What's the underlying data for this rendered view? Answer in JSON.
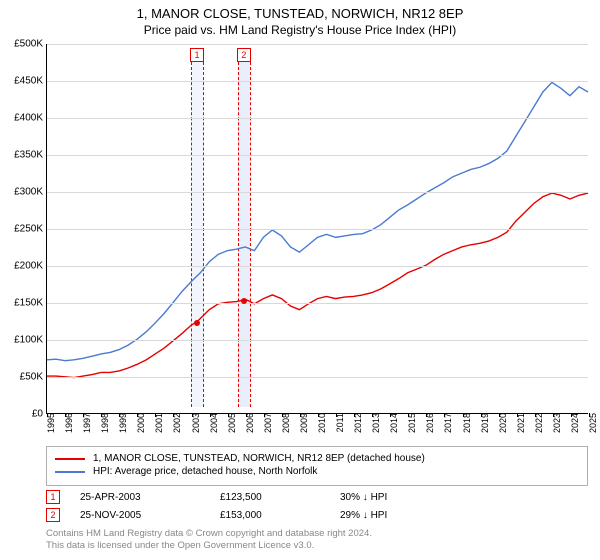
{
  "title": "1, MANOR CLOSE, TUNSTEAD, NORWICH, NR12 8EP",
  "subtitle": "Price paid vs. HM Land Registry's House Price Index (HPI)",
  "chart": {
    "type": "line",
    "background_color": "#ffffff",
    "grid_color": "#d9d9d9",
    "axis_color": "#000000",
    "text_color": "#000000",
    "title_fontsize": 13,
    "subtitle_fontsize": 12,
    "ylabel_fontsize": 10,
    "xlabel_fontsize": 9,
    "ylim": [
      0,
      500000
    ],
    "ytick_step": 50000,
    "yticks": [
      "£0",
      "£50K",
      "£100K",
      "£150K",
      "£200K",
      "£250K",
      "£300K",
      "£350K",
      "£400K",
      "£450K",
      "£500K"
    ],
    "xlim": [
      1995,
      2025
    ],
    "xticks": [
      1995,
      1996,
      1997,
      1998,
      1999,
      2000,
      2001,
      2002,
      2003,
      2004,
      2005,
      2006,
      2007,
      2008,
      2009,
      2010,
      2011,
      2012,
      2013,
      2014,
      2015,
      2016,
      2017,
      2018,
      2019,
      2020,
      2021,
      2022,
      2023,
      2024,
      2025
    ],
    "line_width": 1.4,
    "series": [
      {
        "name": "property_price",
        "label": "1, MANOR CLOSE, TUNSTEAD, NORWICH, NR12 8EP (detached house)",
        "color": "#e60000",
        "points": [
          {
            "x": 1995.0,
            "y": 50000
          },
          {
            "x": 1995.5,
            "y": 50000
          },
          {
            "x": 1996.0,
            "y": 49000
          },
          {
            "x": 1996.5,
            "y": 48000
          },
          {
            "x": 1997.0,
            "y": 50000
          },
          {
            "x": 1997.5,
            "y": 52000
          },
          {
            "x": 1998.0,
            "y": 55000
          },
          {
            "x": 1998.5,
            "y": 55000
          },
          {
            "x": 1999.0,
            "y": 57000
          },
          {
            "x": 1999.5,
            "y": 61000
          },
          {
            "x": 2000.0,
            "y": 66000
          },
          {
            "x": 2000.5,
            "y": 72000
          },
          {
            "x": 2001.0,
            "y": 80000
          },
          {
            "x": 2001.5,
            "y": 88000
          },
          {
            "x": 2002.0,
            "y": 98000
          },
          {
            "x": 2002.5,
            "y": 108000
          },
          {
            "x": 2003.0,
            "y": 119000
          },
          {
            "x": 2003.3,
            "y": 123500
          },
          {
            "x": 2003.5,
            "y": 128000
          },
          {
            "x": 2004.0,
            "y": 140000
          },
          {
            "x": 2004.5,
            "y": 148000
          },
          {
            "x": 2005.0,
            "y": 150000
          },
          {
            "x": 2005.5,
            "y": 151000
          },
          {
            "x": 2005.9,
            "y": 153000
          },
          {
            "x": 2006.0,
            "y": 154000
          },
          {
            "x": 2006.5,
            "y": 148000
          },
          {
            "x": 2007.0,
            "y": 155000
          },
          {
            "x": 2007.5,
            "y": 160000
          },
          {
            "x": 2008.0,
            "y": 155000
          },
          {
            "x": 2008.5,
            "y": 145000
          },
          {
            "x": 2009.0,
            "y": 140000
          },
          {
            "x": 2009.5,
            "y": 148000
          },
          {
            "x": 2010.0,
            "y": 155000
          },
          {
            "x": 2010.5,
            "y": 158000
          },
          {
            "x": 2011.0,
            "y": 155000
          },
          {
            "x": 2011.5,
            "y": 157000
          },
          {
            "x": 2012.0,
            "y": 158000
          },
          {
            "x": 2012.5,
            "y": 160000
          },
          {
            "x": 2013.0,
            "y": 163000
          },
          {
            "x": 2013.5,
            "y": 168000
          },
          {
            "x": 2014.0,
            "y": 175000
          },
          {
            "x": 2014.5,
            "y": 182000
          },
          {
            "x": 2015.0,
            "y": 190000
          },
          {
            "x": 2015.5,
            "y": 195000
          },
          {
            "x": 2016.0,
            "y": 200000
          },
          {
            "x": 2016.5,
            "y": 208000
          },
          {
            "x": 2017.0,
            "y": 215000
          },
          {
            "x": 2017.5,
            "y": 220000
          },
          {
            "x": 2018.0,
            "y": 225000
          },
          {
            "x": 2018.5,
            "y": 228000
          },
          {
            "x": 2019.0,
            "y": 230000
          },
          {
            "x": 2019.5,
            "y": 233000
          },
          {
            "x": 2020.0,
            "y": 238000
          },
          {
            "x": 2020.5,
            "y": 245000
          },
          {
            "x": 2021.0,
            "y": 260000
          },
          {
            "x": 2021.5,
            "y": 272000
          },
          {
            "x": 2022.0,
            "y": 284000
          },
          {
            "x": 2022.5,
            "y": 293000
          },
          {
            "x": 2023.0,
            "y": 298000
          },
          {
            "x": 2023.5,
            "y": 295000
          },
          {
            "x": 2024.0,
            "y": 290000
          },
          {
            "x": 2024.5,
            "y": 295000
          },
          {
            "x": 2025.0,
            "y": 298000
          }
        ]
      },
      {
        "name": "hpi",
        "label": "HPI: Average price, detached house, North Norfolk",
        "color": "#4a7bd0",
        "points": [
          {
            "x": 1995.0,
            "y": 72000
          },
          {
            "x": 1995.5,
            "y": 73000
          },
          {
            "x": 1996.0,
            "y": 71000
          },
          {
            "x": 1996.5,
            "y": 72000
          },
          {
            "x": 1997.0,
            "y": 74000
          },
          {
            "x": 1997.5,
            "y": 77000
          },
          {
            "x": 1998.0,
            "y": 80000
          },
          {
            "x": 1998.5,
            "y": 82000
          },
          {
            "x": 1999.0,
            "y": 86000
          },
          {
            "x": 1999.5,
            "y": 92000
          },
          {
            "x": 2000.0,
            "y": 100000
          },
          {
            "x": 2000.5,
            "y": 110000
          },
          {
            "x": 2001.0,
            "y": 122000
          },
          {
            "x": 2001.5,
            "y": 135000
          },
          {
            "x": 2002.0,
            "y": 150000
          },
          {
            "x": 2002.5,
            "y": 165000
          },
          {
            "x": 2003.0,
            "y": 178000
          },
          {
            "x": 2003.5,
            "y": 190000
          },
          {
            "x": 2004.0,
            "y": 205000
          },
          {
            "x": 2004.5,
            "y": 215000
          },
          {
            "x": 2005.0,
            "y": 220000
          },
          {
            "x": 2005.5,
            "y": 222000
          },
          {
            "x": 2006.0,
            "y": 225000
          },
          {
            "x": 2006.5,
            "y": 220000
          },
          {
            "x": 2007.0,
            "y": 238000
          },
          {
            "x": 2007.5,
            "y": 248000
          },
          {
            "x": 2008.0,
            "y": 240000
          },
          {
            "x": 2008.5,
            "y": 225000
          },
          {
            "x": 2009.0,
            "y": 218000
          },
          {
            "x": 2009.5,
            "y": 228000
          },
          {
            "x": 2010.0,
            "y": 238000
          },
          {
            "x": 2010.5,
            "y": 242000
          },
          {
            "x": 2011.0,
            "y": 238000
          },
          {
            "x": 2011.5,
            "y": 240000
          },
          {
            "x": 2012.0,
            "y": 242000
          },
          {
            "x": 2012.5,
            "y": 243000
          },
          {
            "x": 2013.0,
            "y": 248000
          },
          {
            "x": 2013.5,
            "y": 255000
          },
          {
            "x": 2014.0,
            "y": 265000
          },
          {
            "x": 2014.5,
            "y": 275000
          },
          {
            "x": 2015.0,
            "y": 282000
          },
          {
            "x": 2015.5,
            "y": 290000
          },
          {
            "x": 2016.0,
            "y": 298000
          },
          {
            "x": 2016.5,
            "y": 305000
          },
          {
            "x": 2017.0,
            "y": 312000
          },
          {
            "x": 2017.5,
            "y": 320000
          },
          {
            "x": 2018.0,
            "y": 325000
          },
          {
            "x": 2018.5,
            "y": 330000
          },
          {
            "x": 2019.0,
            "y": 333000
          },
          {
            "x": 2019.5,
            "y": 338000
          },
          {
            "x": 2020.0,
            "y": 345000
          },
          {
            "x": 2020.5,
            "y": 355000
          },
          {
            "x": 2021.0,
            "y": 375000
          },
          {
            "x": 2021.5,
            "y": 395000
          },
          {
            "x": 2022.0,
            "y": 415000
          },
          {
            "x": 2022.5,
            "y": 435000
          },
          {
            "x": 2023.0,
            "y": 448000
          },
          {
            "x": 2023.5,
            "y": 440000
          },
          {
            "x": 2024.0,
            "y": 430000
          },
          {
            "x": 2024.5,
            "y": 442000
          },
          {
            "x": 2025.0,
            "y": 435000
          }
        ]
      }
    ],
    "markers": [
      {
        "id": "1",
        "x": 2003.3,
        "y": 123500,
        "band_color": "#f2f6fc",
        "line_color": "#e60000",
        "marker_color": "#e60000"
      },
      {
        "id": "2",
        "x": 2005.9,
        "y": 153000,
        "band_color": "#e8effa",
        "line_color": "#e60000",
        "marker_color": "#e60000"
      }
    ]
  },
  "legend": {
    "border_color": "#b0b0b0",
    "fontsize": 10
  },
  "transactions": [
    {
      "marker_id": "1",
      "marker_color": "#e60000",
      "date": "25-APR-2003",
      "price": "£123,500",
      "diff": "30% ↓ HPI"
    },
    {
      "marker_id": "2",
      "marker_color": "#e60000",
      "date": "25-NOV-2005",
      "price": "£153,000",
      "diff": "29% ↓ HPI"
    }
  ],
  "footer_line1": "Contains HM Land Registry data © Crown copyright and database right 2024.",
  "footer_line2": "This data is licensed under the Open Government Licence v3.0.",
  "footer_color": "#888888"
}
